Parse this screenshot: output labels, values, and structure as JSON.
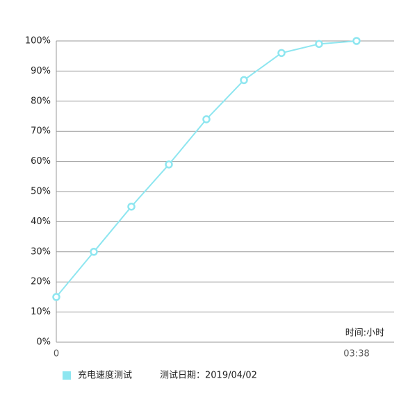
{
  "chart_data": {
    "type": "line",
    "x": [
      0,
      1,
      2,
      3,
      4,
      5,
      6,
      7,
      8
    ],
    "xlim": [
      0,
      9
    ],
    "xticks": [
      0,
      {
        "value": 8,
        "label": "03:38"
      }
    ],
    "x_label": "时间:小时",
    "series": [
      {
        "name": "充电速度测试",
        "color": "#8ee6f0",
        "values": [
          15,
          30,
          45,
          59,
          74,
          87,
          96,
          99,
          100
        ]
      }
    ],
    "ylim": [
      0,
      100
    ],
    "yticks": [
      {
        "value": 0,
        "label": "0%"
      },
      {
        "value": 10,
        "label": "10%"
      },
      {
        "value": 20,
        "label": "20%"
      },
      {
        "value": 30,
        "label": "30%"
      },
      {
        "value": 40,
        "label": "40%"
      },
      {
        "value": 50,
        "label": "50%"
      },
      {
        "value": 60,
        "label": "60%"
      },
      {
        "value": 70,
        "label": "70%"
      },
      {
        "value": 80,
        "label": "80%"
      },
      {
        "value": 90,
        "label": "90%"
      },
      {
        "value": 100,
        "label": "100%"
      }
    ],
    "grid": true,
    "note": "测试日期：2019/04/02"
  }
}
